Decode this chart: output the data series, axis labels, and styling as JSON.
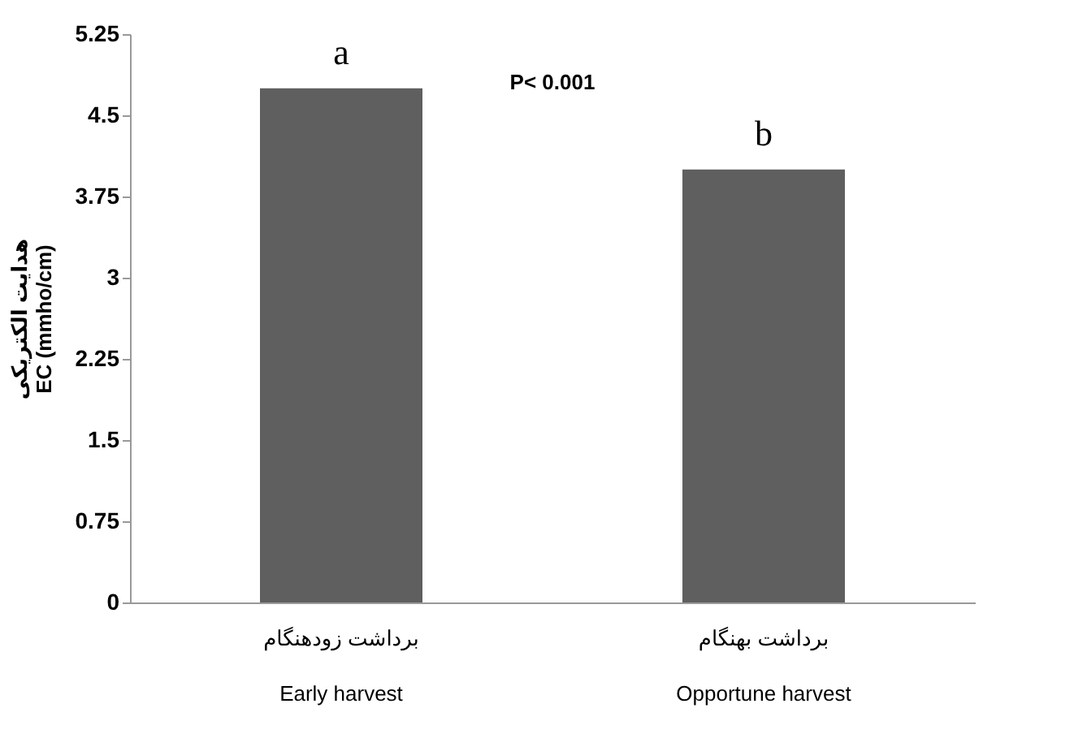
{
  "chart_data": {
    "type": "bar",
    "categories": [
      "برداشت زودهنگام\nEarly harvest",
      "برداشت بهنگام\nOpportune harvest"
    ],
    "values": [
      4.75,
      4.0
    ],
    "color": "#5f5f5f",
    "ylabel": "هدایت الکتریکی\nEC (mmho/cm)",
    "ylim": [
      0,
      5.25
    ],
    "yticks": [
      0,
      0.75,
      1.5,
      2.25,
      3,
      3.75,
      4.5,
      5.25
    ],
    "grid": false,
    "annotations": [
      "a",
      "b",
      "P< 0.001"
    ]
  }
}
